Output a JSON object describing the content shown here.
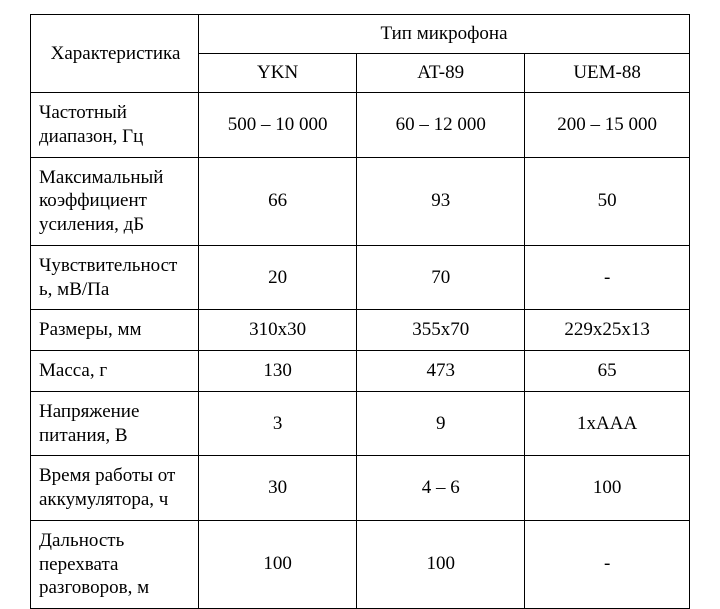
{
  "table": {
    "header": {
      "characteristic": "Характеристика",
      "mic_type": "Тип микрофона",
      "columns": [
        "YKN",
        "AT-89",
        "UEM-88"
      ]
    },
    "rows": [
      {
        "label": "Частотный диапазон, Гц",
        "values": [
          "500 – 10 000",
          "60 – 12 000",
          "200 – 15 000"
        ]
      },
      {
        "label": "Максимальный коэффициент усиления, дБ",
        "values": [
          "66",
          "93",
          "50"
        ]
      },
      {
        "label": "Чувствительност ь, мВ/Па",
        "values": [
          "20",
          "70",
          "-"
        ]
      },
      {
        "label": "Размеры, мм",
        "values": [
          "310х30",
          "355х70",
          "229х25х13"
        ]
      },
      {
        "label": "Масса, г",
        "values": [
          "130",
          "473",
          "65"
        ]
      },
      {
        "label": "Напряжение питания, В",
        "values": [
          "3",
          "9",
          "1хААА"
        ]
      },
      {
        "label": "Время работы от аккумулятора, ч",
        "values": [
          "30",
          "4 – 6",
          "100"
        ]
      },
      {
        "label": "Дальность перехвата разговоров, м",
        "values": [
          "100",
          "100",
          "-"
        ]
      }
    ]
  },
  "style": {
    "font_family": "Times New Roman",
    "border_color": "#000000",
    "background_color": "#ffffff",
    "text_color": "#000000",
    "header_fontsize": 19,
    "cell_fontsize": 19,
    "col_widths_pct": [
      25.5,
      24,
      25.5,
      25
    ]
  }
}
